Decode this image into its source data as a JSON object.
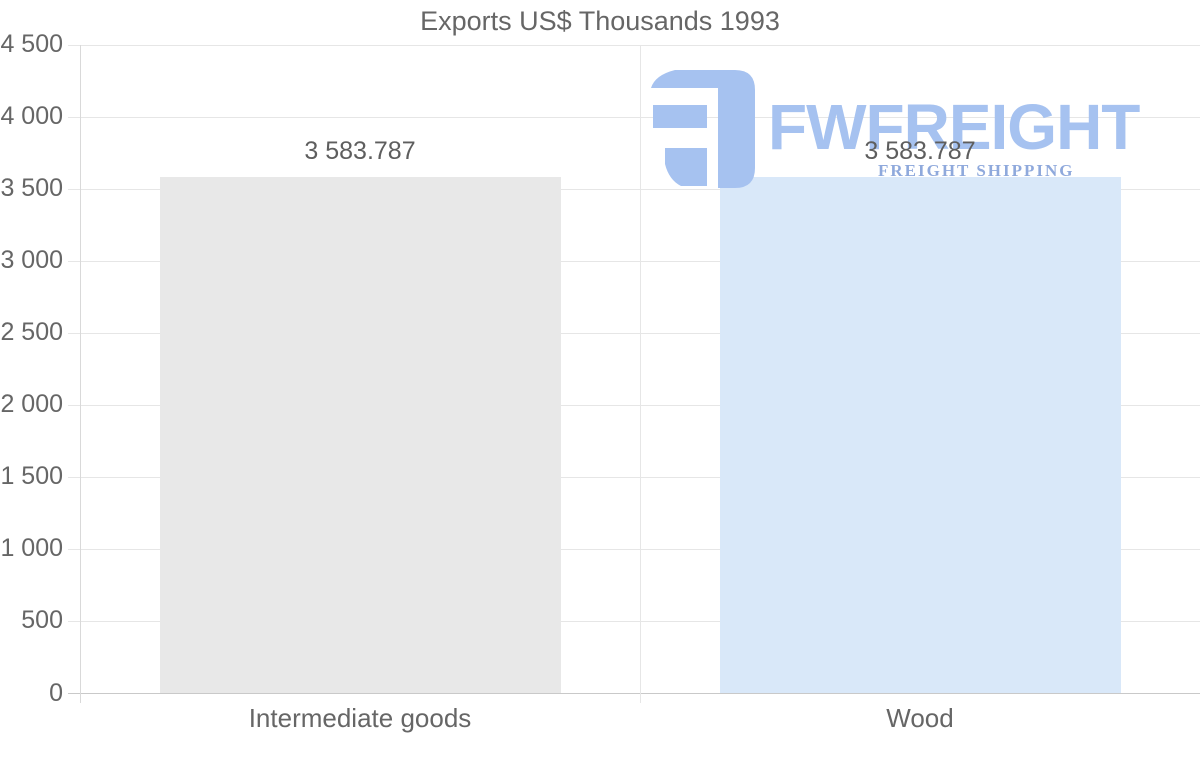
{
  "chart_data": {
    "type": "bar",
    "title": "Exports US$ Thousands 1993",
    "categories": [
      "Intermediate goods",
      "Wood"
    ],
    "values": [
      3583.787,
      3583.787
    ],
    "value_labels": [
      "3 583.787",
      "3 583.787"
    ],
    "xlabel": "",
    "ylabel": "",
    "ylim": [
      0,
      4500
    ],
    "ytick_step": 500,
    "ytick_labels": [
      "0",
      "500",
      "1 000",
      "1 500",
      "2 000",
      "2 500",
      "3 000",
      "3 500",
      "4 000",
      "4 500"
    ],
    "grid": true,
    "legend": "none",
    "bar_colors": [
      "#e8e8e8",
      "#d9e8f9"
    ]
  },
  "colors": {
    "title_text": "#666666",
    "axis_text": "#666666",
    "value_text": "#5e5e5e",
    "gridline": "#e6e6e6",
    "baseline": "#c9c9c9",
    "axis_line": "#d9d9d9",
    "watermark_primary": "#a6c2f0",
    "watermark_tagline": "#8fa9dc"
  },
  "watermark": {
    "brand": "FWFREIGHT",
    "tagline": "FREIGHT SHIPPING",
    "logo": "fwfreight-logo-icon"
  }
}
